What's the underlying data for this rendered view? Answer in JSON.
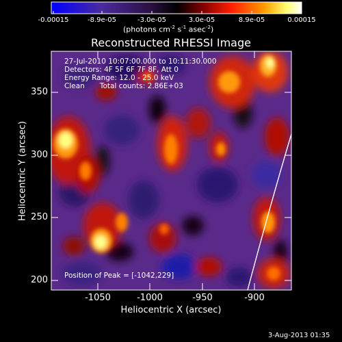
{
  "colorbar": {
    "ticks": [
      "-0.00015",
      "-8.9e-05",
      "-3.0e-05",
      "3.0e-05",
      "8.9e-05",
      "0.00015"
    ],
    "units_line": "(photons cm",
    "units_sup1": "-2",
    "units_mid1": " s",
    "units_sup2": "-1",
    "units_mid2": " asec",
    "units_sup3": "-2",
    "units_end": ")"
  },
  "title": "Reconstructed RHESSI Image",
  "info": {
    "time_range": "27-Jul-2010 10:07:00.000 to 10:11:30.000",
    "detectors": "Detectors: 4F 5F 6F 7F 8F, Att 0",
    "energy": "Energy Range: 12.0 - 25.0 keV",
    "method": "Clean",
    "counts": "Total counts: 2.86E+03",
    "peak": "Position of Peak = [-1042,229]"
  },
  "axes": {
    "xlabel": "Heliocentric X (arcsec)",
    "ylabel": "Heliocentric Y (arcsec)",
    "xticks": [
      "-1050",
      "-1000",
      "-950",
      "-900"
    ],
    "yticks": [
      "350",
      "300",
      "250",
      "200"
    ]
  },
  "timestamp": "3-Aug-2013 01:35",
  "colors": {
    "background": "#000000",
    "colormap": [
      "#0000ff",
      "#3d1f8f",
      "#5a2e8a",
      "#000000",
      "#800000",
      "#ff2000",
      "#ff8c00",
      "#ffff60",
      "#ffffff"
    ]
  }
}
